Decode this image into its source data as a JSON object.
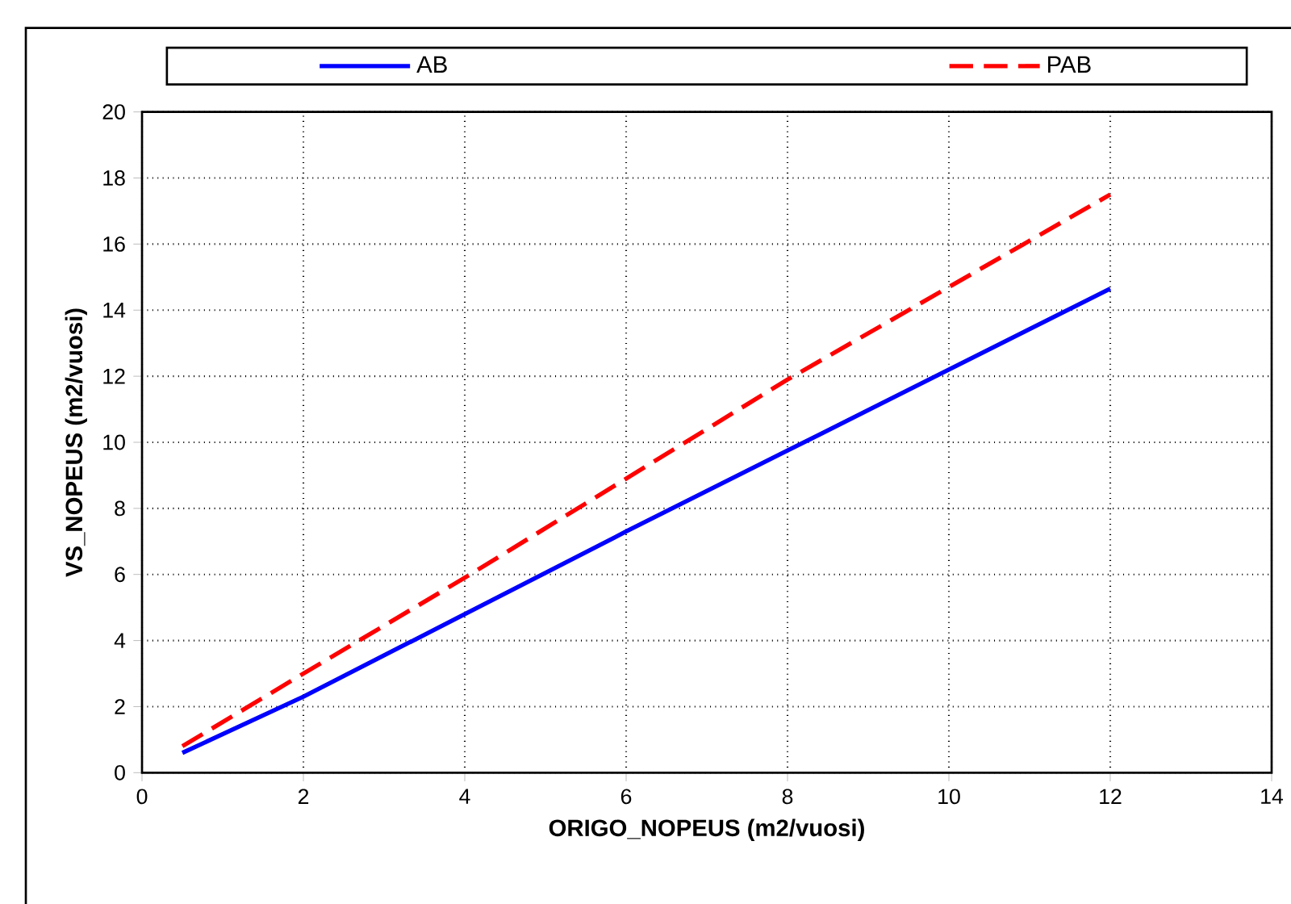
{
  "chart_data": {
    "type": "line",
    "xlabel": "ORIGO_NOPEUS (m2/vuosi)",
    "ylabel": "VS_NOPEUS (m2/vuosi)",
    "x": [
      0.5,
      2,
      4,
      6,
      8,
      10,
      12
    ],
    "series": [
      {
        "name": "AB",
        "color": "#0000ff",
        "line_style": "solid",
        "values": [
          0.6,
          2.3,
          4.8,
          7.3,
          9.75,
          12.2,
          14.65
        ]
      },
      {
        "name": "PAB",
        "color": "#ff0000",
        "line_style": "dashed",
        "values": [
          0.8,
          3.0,
          5.9,
          8.9,
          11.9,
          14.7,
          17.5
        ]
      }
    ],
    "xlim": [
      0,
      14
    ],
    "ylim": [
      0,
      20
    ],
    "xticks": [
      0,
      2,
      4,
      6,
      8,
      10,
      12,
      14
    ],
    "yticks": [
      0,
      2,
      4,
      6,
      8,
      10,
      12,
      14,
      16,
      18,
      20
    ],
    "grid": true,
    "legend": "top"
  }
}
